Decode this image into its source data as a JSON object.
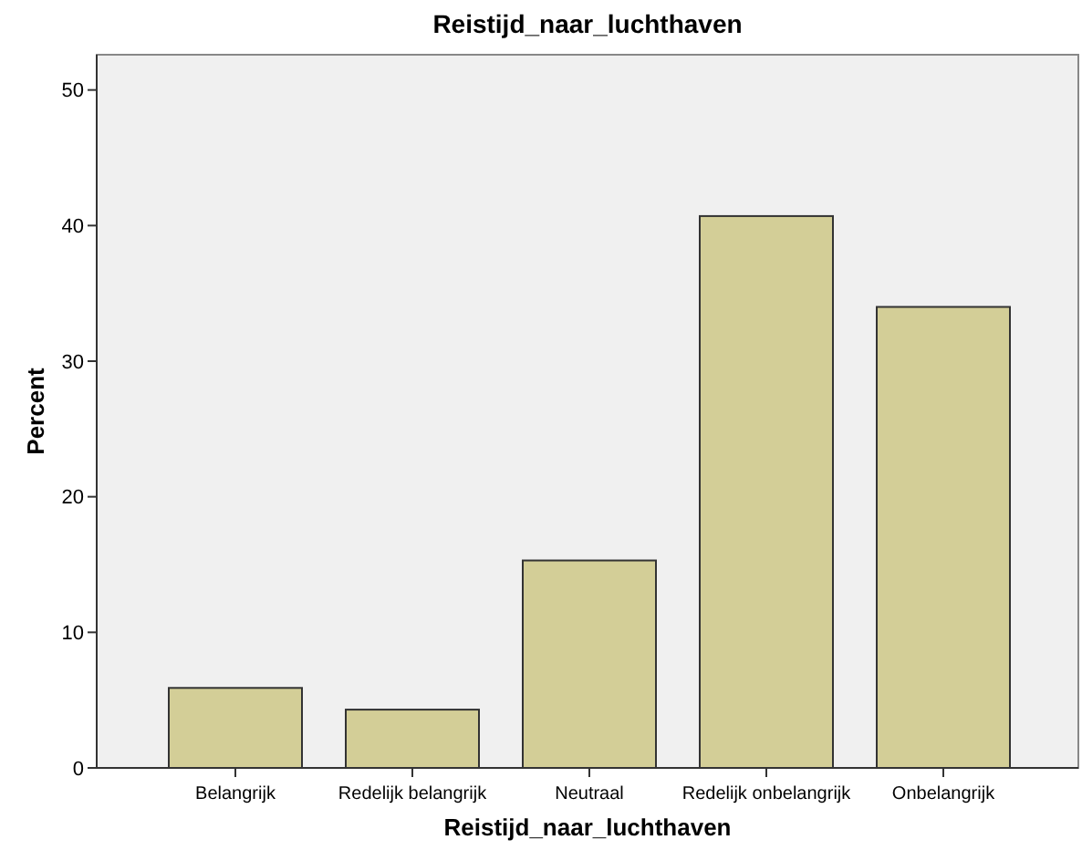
{
  "chart_data": {
    "type": "bar",
    "title": "Reistijd_naar_luchthaven",
    "xlabel": "Reistijd_naar_luchthaven",
    "ylabel": "Percent",
    "categories": [
      "Belangrijk",
      "Redelijk belangrijk",
      "Neutraal",
      "Redelijk onbelangrijk",
      "Onbelangrijk"
    ],
    "values": [
      5.9,
      4.3,
      15.3,
      40.7,
      34.0
    ],
    "color": "#d3ce97",
    "ylim": [
      0,
      52.6
    ],
    "yticks": [
      0,
      10,
      20,
      30,
      40,
      50
    ],
    "grid": false
  }
}
